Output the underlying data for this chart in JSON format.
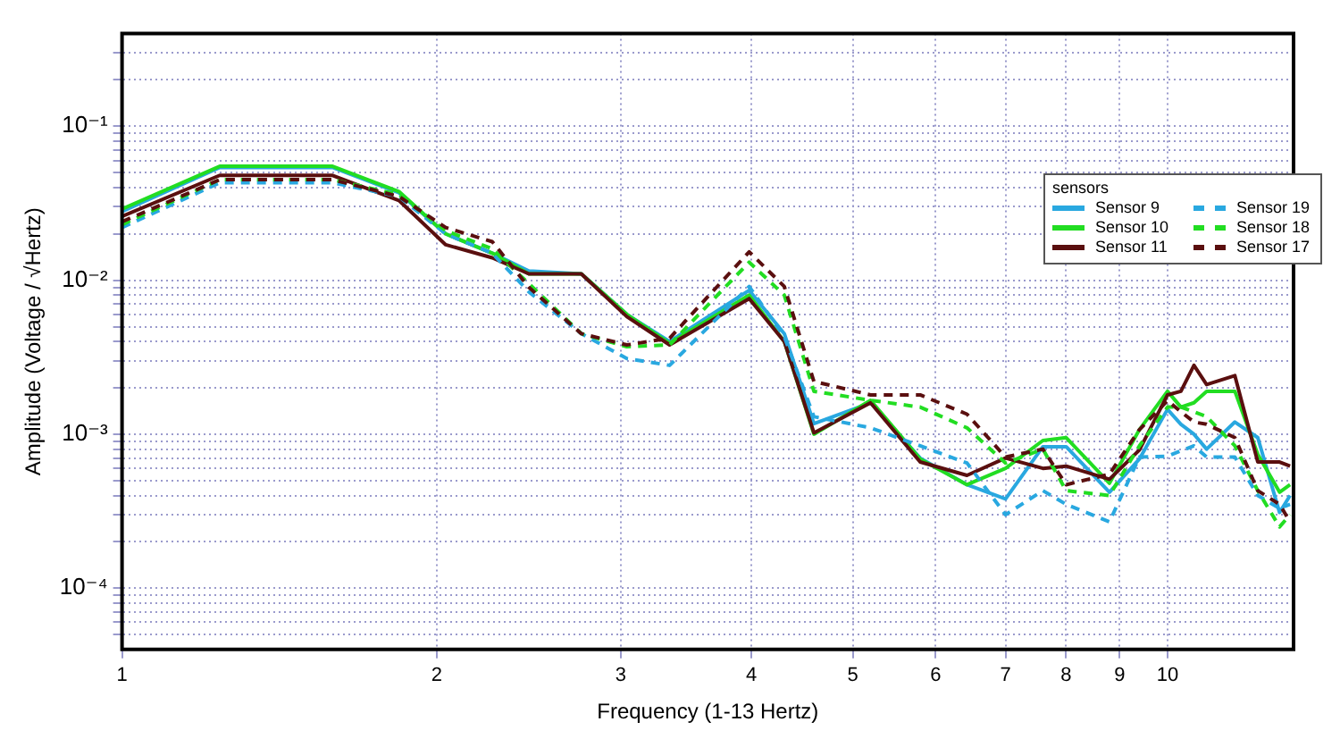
{
  "chart_data": {
    "type": "line",
    "xlabel": "Frequency (1-13 Hertz)",
    "ylabel": "Amplitude (Voltage / √Hertz)",
    "legend_title": "sensors",
    "log": "xy",
    "grid": true,
    "legend": "top right",
    "marker": "none",
    "xlim": [
      1,
      13.2
    ],
    "ylim": [
      4e-05,
      0.4
    ],
    "xticks": [
      1,
      2,
      3,
      4,
      5,
      6,
      7,
      8,
      9,
      10
    ],
    "yticks": [
      {
        "value": 5e-05,
        "label": null
      },
      {
        "value": 6e-05,
        "label": null
      },
      {
        "value": 7e-05,
        "label": null
      },
      {
        "value": 8e-05,
        "label": null
      },
      {
        "value": 9e-05,
        "label": null
      },
      {
        "value": 0.0001,
        "label": "10⁻⁴"
      },
      {
        "value": 0.0002,
        "label": null
      },
      {
        "value": 0.0003,
        "label": null
      },
      {
        "value": 0.0004,
        "label": null
      },
      {
        "value": 0.0005,
        "label": null
      },
      {
        "value": 0.0006,
        "label": null
      },
      {
        "value": 0.0007,
        "label": null
      },
      {
        "value": 0.0008,
        "label": null
      },
      {
        "value": 0.0009,
        "label": null
      },
      {
        "value": 0.001,
        "label": "10⁻³"
      },
      {
        "value": 0.002,
        "label": null
      },
      {
        "value": 0.003,
        "label": null
      },
      {
        "value": 0.004,
        "label": null
      },
      {
        "value": 0.005,
        "label": null
      },
      {
        "value": 0.006,
        "label": null
      },
      {
        "value": 0.007,
        "label": null
      },
      {
        "value": 0.008,
        "label": null
      },
      {
        "value": 0.009,
        "label": null
      },
      {
        "value": 0.01,
        "label": "10⁻²"
      },
      {
        "value": 0.02,
        "label": null
      },
      {
        "value": 0.03,
        "label": null
      },
      {
        "value": 0.04,
        "label": null
      },
      {
        "value": 0.05,
        "label": null
      },
      {
        "value": 0.06,
        "label": null
      },
      {
        "value": 0.07,
        "label": null
      },
      {
        "value": 0.08,
        "label": null
      },
      {
        "value": 0.09,
        "label": null
      },
      {
        "value": 0.1,
        "label": "10⁻¹"
      },
      {
        "value": 0.2,
        "label": null
      },
      {
        "value": 0.3,
        "label": null
      }
    ],
    "x": [
      1,
      1.24,
      1.59,
      1.84,
      2.04,
      2.26,
      2.45,
      2.75,
      3.04,
      3.34,
      3.98,
      4.3,
      4.59,
      5.2,
      5.8,
      6.43,
      7.0,
      7.6,
      8.0,
      8.8,
      9.4,
      10.0,
      10.3,
      10.6,
      10.9,
      11.6,
      12.2,
      12.8,
      13.1
    ],
    "series": [
      {
        "name": "Sensor 9",
        "color": "#29a8e0",
        "line_style": "solid",
        "values": [
          0.028,
          0.054,
          0.054,
          0.037,
          0.02,
          0.015,
          0.0115,
          0.011,
          0.006,
          0.004,
          0.0086,
          0.0045,
          0.00117,
          0.0016,
          0.0007,
          0.00047,
          0.00038,
          0.00083,
          0.00083,
          0.00042,
          0.00069,
          0.00145,
          0.00116,
          0.001,
          0.0008,
          0.0012,
          0.00095,
          0.00031,
          0.0004
        ]
      },
      {
        "name": "Sensor 10",
        "color": "#22dd22",
        "line_style": "solid",
        "values": [
          0.029,
          0.055,
          0.055,
          0.0377,
          0.02,
          0.015,
          0.011,
          0.011,
          0.006,
          0.0039,
          0.008,
          0.004,
          0.001,
          0.00166,
          0.00069,
          0.00047,
          0.0006,
          0.00091,
          0.00095,
          0.00048,
          0.00107,
          0.0019,
          0.0015,
          0.0016,
          0.0019,
          0.0019,
          0.00074,
          0.00042,
          0.00047
        ]
      },
      {
        "name": "Sensor 11",
        "color": "#5a0f0f",
        "line_style": "solid",
        "values": [
          0.026,
          0.048,
          0.048,
          0.033,
          0.017,
          0.014,
          0.011,
          0.011,
          0.0058,
          0.0038,
          0.0076,
          0.004,
          0.00102,
          0.0016,
          0.00066,
          0.00054,
          0.0007,
          0.0006,
          0.00062,
          0.00051,
          0.00079,
          0.0018,
          0.0019,
          0.0028,
          0.0021,
          0.0024,
          0.00066,
          0.00066,
          0.00062
        ]
      },
      {
        "name": "Sensor 19",
        "color": "#29a8e0",
        "line_style": "dashed",
        "values": [
          0.022,
          0.043,
          0.043,
          0.035,
          0.02,
          0.015,
          0.0084,
          0.0045,
          0.0031,
          0.0028,
          0.0091,
          0.0043,
          0.0013,
          0.0011,
          0.00084,
          0.00065,
          0.0003,
          0.00043,
          0.00035,
          0.00027,
          0.00071,
          0.00072,
          0.00078,
          0.00084,
          0.00071,
          0.00071,
          0.0004,
          0.00033,
          0.00035
        ]
      },
      {
        "name": "Sensor 18",
        "color": "#22dd22",
        "line_style": "dashed",
        "values": [
          0.023,
          0.045,
          0.045,
          0.036,
          0.021,
          0.016,
          0.0095,
          0.0045,
          0.0037,
          0.0038,
          0.0131,
          0.008,
          0.0019,
          0.00166,
          0.0015,
          0.0011,
          0.00065,
          0.0008,
          0.00043,
          0.0004,
          0.00084,
          0.0015,
          0.0015,
          0.0014,
          0.0013,
          0.00084,
          0.00043,
          0.00025,
          0.0003
        ]
      },
      {
        "name": "Sensor 17",
        "color": "#5a0f0f",
        "line_style": "dashed",
        "values": [
          0.024,
          0.045,
          0.045,
          0.035,
          0.022,
          0.0178,
          0.009,
          0.0045,
          0.0038,
          0.0042,
          0.0153,
          0.0091,
          0.0022,
          0.0018,
          0.0018,
          0.00135,
          0.00071,
          0.0008,
          0.00047,
          0.00055,
          0.00107,
          0.00165,
          0.0014,
          0.0012,
          0.00116,
          0.00095,
          0.00043,
          0.00035,
          0.00027
        ]
      }
    ]
  }
}
